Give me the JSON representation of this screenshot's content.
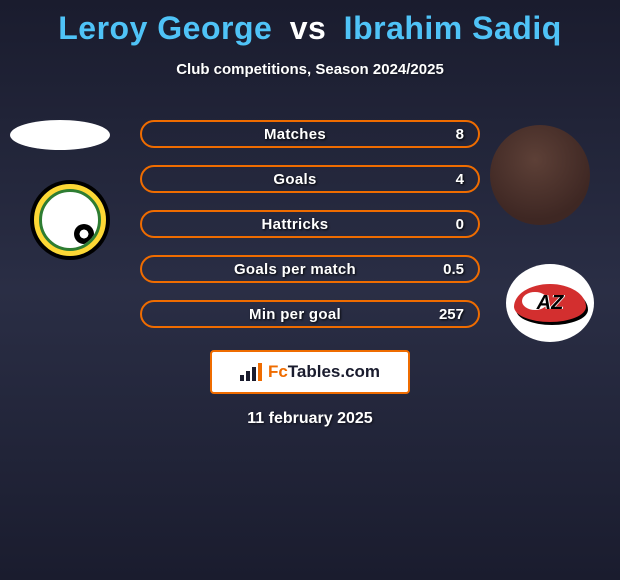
{
  "title": {
    "player1": "Leroy George",
    "vs": "vs",
    "player2": "Ibrahim Sadiq"
  },
  "subtitle": "Club competitions, Season 2024/2025",
  "stats": [
    {
      "label": "Matches",
      "value": "8"
    },
    {
      "label": "Goals",
      "value": "4"
    },
    {
      "label": "Hattricks",
      "value": "0"
    },
    {
      "label": "Goals per match",
      "value": "0.5"
    },
    {
      "label": "Min per goal",
      "value": "257"
    }
  ],
  "brand": {
    "fc": "Fc",
    "tables": "Tables",
    "dotcom": ".com"
  },
  "date": "11 february 2025",
  "badges": {
    "left_player": "leroy-george-avatar",
    "left_club": "fortuna-sittard-crest",
    "right_player": "ibrahim-sadiq-avatar",
    "right_club": "az-alkmaar-crest"
  },
  "colors": {
    "accent": "#ef6c00",
    "title": "#4fc3f7",
    "text": "#ffffff",
    "bg_top": "#1a1c2e"
  }
}
